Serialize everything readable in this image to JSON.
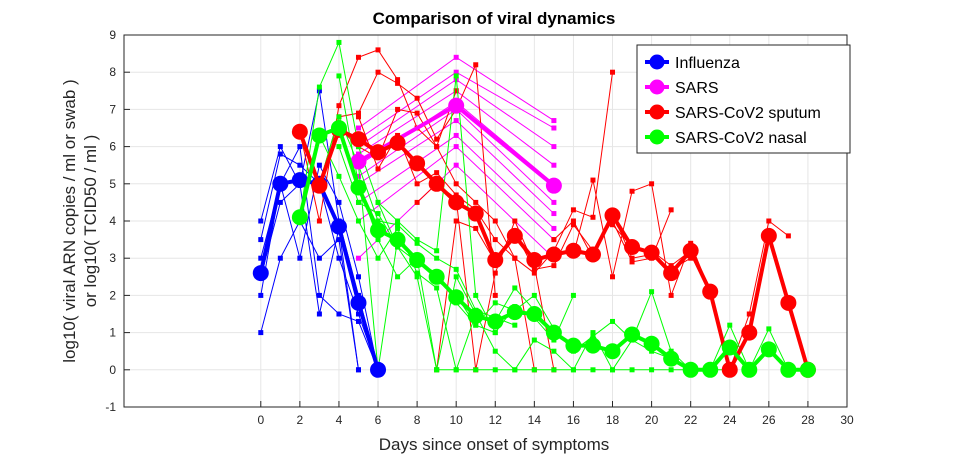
{
  "chart_data": {
    "type": "line",
    "title": "Comparison of viral dynamics",
    "xlabel": "Days since onset of symptoms",
    "ylabel_lines": [
      "log10( viral ARN copies / ml or swab )",
      "or log10( TCID50 / ml )"
    ],
    "xlim": [
      -7,
      30
    ],
    "ylim": [
      -1,
      9
    ],
    "xticks": [
      0,
      2,
      4,
      6,
      8,
      10,
      12,
      14,
      16,
      18,
      20,
      22,
      24,
      26,
      28,
      30
    ],
    "yticks": [
      -1,
      0,
      1,
      2,
      3,
      4,
      5,
      6,
      7,
      8,
      9
    ],
    "grid": true,
    "legend_position": "top-right",
    "series": [
      {
        "name": "Influenza",
        "color": "#0000ff",
        "mean": {
          "x": [
            0,
            1,
            2,
            3,
            4,
            5,
            6
          ],
          "y": [
            2.6,
            5.0,
            5.1,
            5.0,
            3.85,
            1.8,
            0
          ]
        },
        "individuals": [
          {
            "x": [
              0,
              1,
              2,
              3,
              4,
              5,
              6
            ],
            "y": [
              4.0,
              6.0,
              5.0,
              7.5,
              4.0,
              2.0,
              0
            ]
          },
          {
            "x": [
              0,
              1,
              2,
              3,
              4,
              5,
              6
            ],
            "y": [
              3.5,
              5.8,
              5.5,
              5.0,
              3.0,
              1.5,
              0
            ]
          },
          {
            "x": [
              0,
              1,
              2,
              3,
              4,
              5,
              6
            ],
            "y": [
              2.0,
              5.0,
              3.0,
              5.5,
              4.5,
              2.5,
              0
            ]
          },
          {
            "x": [
              0,
              1,
              2,
              3,
              4,
              5
            ],
            "y": [
              1.0,
              3.0,
              4.0,
              3.0,
              3.5,
              0
            ]
          },
          {
            "x": [
              0,
              1,
              2,
              3,
              4,
              5,
              6
            ],
            "y": [
              3.0,
              5.0,
              6.0,
              2.0,
              1.5,
              1.3,
              0
            ]
          },
          {
            "x": [
              0,
              1,
              2,
              3,
              4,
              5
            ],
            "y": [
              2.5,
              4.5,
              5.0,
              1.5,
              3.8,
              0
            ]
          }
        ]
      },
      {
        "name": "SARS",
        "color": "#ff00ff",
        "mean": {
          "x": [
            5,
            10,
            15
          ],
          "y": [
            5.6,
            7.1,
            4.95
          ]
        },
        "individuals": [
          {
            "x": [
              5,
              10,
              15
            ],
            "y": [
              6.5,
              8.4,
              6.7
            ]
          },
          {
            "x": [
              5,
              10,
              15
            ],
            "y": [
              6.2,
              8.0,
              6.5
            ]
          },
          {
            "x": [
              5,
              10,
              15
            ],
            "y": [
              6.0,
              7.8,
              6.0
            ]
          },
          {
            "x": [
              5,
              10,
              15
            ],
            "y": [
              5.8,
              7.5,
              5.5
            ]
          },
          {
            "x": [
              5,
              10,
              15
            ],
            "y": [
              5.5,
              7.2,
              5.0
            ]
          },
          {
            "x": [
              5,
              10,
              15
            ],
            "y": [
              5.2,
              7.0,
              4.5
            ]
          },
          {
            "x": [
              5,
              10,
              15
            ],
            "y": [
              5.0,
              6.7,
              4.2
            ]
          },
          {
            "x": [
              5,
              10,
              15
            ],
            "y": [
              4.5,
              6.3,
              3.8
            ]
          },
          {
            "x": [
              5,
              10,
              15
            ],
            "y": [
              4.0,
              6.0,
              3.5
            ]
          },
          {
            "x": [
              5,
              10,
              15
            ],
            "y": [
              3.0,
              5.5,
              3.0
            ]
          }
        ]
      },
      {
        "name": "SARS-CoV2 sputum",
        "color": "#ff0000",
        "mean": {
          "x": [
            2,
            3,
            4,
            5,
            6,
            7,
            8,
            9,
            10,
            11,
            12,
            13,
            14,
            15,
            16,
            17,
            18,
            19,
            20,
            21,
            22,
            23,
            24,
            25,
            26,
            27,
            28
          ],
          "y": [
            6.4,
            4.95,
            6.45,
            6.2,
            5.85,
            6.1,
            5.55,
            5.0,
            4.5,
            4.2,
            2.95,
            3.6,
            2.95,
            3.1,
            3.2,
            3.1,
            4.15,
            3.3,
            3.15,
            2.6,
            3.2,
            2.1,
            0,
            1.0,
            3.6,
            1.8,
            0
          ]
        },
        "individuals": [
          {
            "x": [
              2,
              3,
              4,
              5,
              6,
              7,
              8,
              9,
              10
            ],
            "y": [
              6.4,
              4.0,
              7.1,
              8.4,
              8.6,
              7.8,
              6.5,
              6.0,
              7.5
            ]
          },
          {
            "x": [
              3,
              4,
              5,
              6,
              7,
              8,
              9,
              10,
              11,
              12
            ],
            "y": [
              5.0,
              6.8,
              6.9,
              8.0,
              7.7,
              7.3,
              6.2,
              7.0,
              8.2,
              2.0
            ]
          },
          {
            "x": [
              4,
              5,
              6,
              7,
              8,
              9,
              10,
              11,
              12,
              13,
              14
            ],
            "y": [
              6.5,
              6.0,
              5.7,
              7.0,
              6.9,
              6.0,
              5.0,
              4.5,
              4.0,
              3.0,
              0
            ]
          },
          {
            "x": [
              5,
              6,
              7,
              8,
              9,
              10,
              11,
              12,
              13,
              14,
              15,
              16,
              17,
              18
            ],
            "y": [
              6.8,
              5.4,
              6.3,
              5.0,
              5.3,
              4.7,
              4.3,
              3.5,
              3.0,
              2.6,
              3.2,
              4.3,
              4.1,
              8.0
            ]
          },
          {
            "x": [
              8,
              9,
              10,
              11,
              12,
              13,
              14,
              15
            ],
            "y": [
              4.5,
              5.0,
              4.6,
              0,
              2.6,
              4.0,
              2.8,
              0
            ]
          },
          {
            "x": [
              9,
              10,
              11,
              12,
              13,
              14,
              15,
              16,
              17,
              18,
              19,
              20,
              21
            ],
            "y": [
              0,
              4.0,
              3.8,
              2.9,
              3.7,
              2.7,
              2.8,
              3.9,
              3.2,
              4.0,
              2.9,
              3.0,
              4.3
            ]
          },
          {
            "x": [
              16,
              17,
              18,
              19,
              20,
              21,
              22,
              23,
              24
            ],
            "y": [
              3.1,
              5.1,
              2.5,
              4.8,
              5.0,
              2.0,
              3.4,
              2.1,
              0
            ]
          },
          {
            "x": [
              18,
              19,
              20,
              21,
              22,
              23,
              24,
              25,
              26,
              27
            ],
            "y": [
              3.9,
              3.3,
              3.2,
              2.8,
              3.2,
              2.2,
              0,
              1.5,
              4.0,
              3.6
            ]
          },
          {
            "x": [
              15,
              16,
              17,
              18,
              19,
              20,
              21,
              22
            ],
            "y": [
              3.5,
              4.0,
              3.0,
              4.2,
              3.0,
              3.1,
              2.7,
              3.0
            ]
          }
        ]
      },
      {
        "name": "SARS-CoV2 nasal",
        "color": "#00ff00",
        "mean": {
          "x": [
            2,
            3,
            4,
            5,
            6,
            7,
            8,
            9,
            10,
            11,
            12,
            13,
            14,
            15,
            16,
            17,
            18,
            19,
            20,
            21,
            22,
            23,
            24,
            25,
            26,
            27,
            28
          ],
          "y": [
            4.1,
            6.3,
            6.5,
            4.9,
            3.75,
            3.5,
            2.95,
            2.5,
            1.95,
            1.45,
            1.3,
            1.55,
            1.5,
            1.0,
            0.65,
            0.65,
            0.5,
            0.95,
            0.7,
            0.3,
            0,
            0,
            0.6,
            0,
            0.55,
            0,
            0
          ]
        },
        "individuals": [
          {
            "x": [
              2,
              3,
              4,
              5,
              6,
              7,
              8,
              9,
              10,
              11,
              12
            ],
            "y": [
              4.1,
              7.6,
              8.8,
              6.0,
              4.5,
              4.0,
              3.5,
              3.2,
              7.9,
              2.0,
              1.0
            ]
          },
          {
            "x": [
              3,
              4,
              5,
              6,
              7,
              8,
              9,
              10,
              11,
              12,
              13,
              14
            ],
            "y": [
              6.3,
              5.2,
              4.0,
              3.0,
              3.8,
              2.6,
              2.2,
              0,
              1.5,
              1.3,
              2.2,
              1.6
            ]
          },
          {
            "x": [
              4,
              5,
              6,
              7,
              8,
              9,
              10,
              11,
              12,
              13,
              14,
              15,
              16
            ],
            "y": [
              7.9,
              5.0,
              3.5,
              2.5,
              3.0,
              2.4,
              2.0,
              1.2,
              1.0,
              1.7,
              1.4,
              0.8,
              2.0
            ]
          },
          {
            "x": [
              4,
              5,
              6,
              7,
              8,
              9,
              10,
              11,
              12,
              13,
              14,
              15,
              16,
              17,
              18,
              19,
              20,
              21,
              22
            ],
            "y": [
              6.0,
              4.5,
              4.2,
              3.3,
              2.5,
              0,
              2.5,
              1.5,
              0.5,
              0,
              0.8,
              0.5,
              0,
              1.0,
              0,
              0.8,
              0.5,
              0.3,
              0
            ]
          },
          {
            "x": [
              5,
              6,
              7,
              8,
              9,
              10,
              11,
              12,
              13,
              14,
              15,
              16,
              17,
              18,
              19,
              20,
              21,
              22,
              23,
              24
            ],
            "y": [
              5.5,
              0,
              3.5,
              3.0,
              0,
              0,
              0,
              0,
              0,
              0,
              0,
              0,
              0,
              0,
              0,
              0,
              0,
              0,
              0,
              0
            ]
          },
          {
            "x": [
              6,
              7,
              8,
              9,
              10,
              11,
              12,
              13,
              14,
              15,
              16,
              17,
              18,
              19,
              20,
              21,
              22,
              23,
              24,
              25,
              26,
              27,
              28
            ],
            "y": [
              4.5,
              3.3,
              2.9,
              2.6,
              1.8,
              1.2,
              1.8,
              1.6,
              2.0,
              1.1,
              0.5,
              0.9,
              1.3,
              0.8,
              2.1,
              0.5,
              0,
              0,
              1.2,
              0,
              1.1,
              0,
              0
            ]
          },
          {
            "x": [
              3,
              4,
              5,
              6,
              7,
              8,
              9,
              10,
              11,
              12,
              13
            ],
            "y": [
              5.0,
              6.8,
              5.5,
              4.0,
              3.9,
              3.4,
              3.0,
              2.7,
              1.6,
              1.4,
              1.2
            ]
          }
        ]
      }
    ]
  }
}
